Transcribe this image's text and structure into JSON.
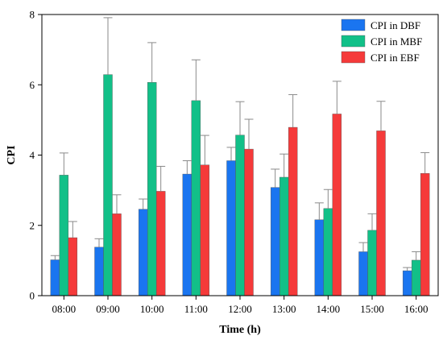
{
  "chart_data": {
    "type": "bar",
    "xlabel": "Time (h)",
    "ylabel": "CPI",
    "ylim": [
      0,
      8
    ],
    "yticks": [
      "0",
      "2",
      "4",
      "6",
      "8"
    ],
    "grid": false,
    "legend_position": "top-right",
    "categories": [
      "08:00",
      "09:00",
      "10:00",
      "11:00",
      "12:00",
      "13:00",
      "14:00",
      "15:00",
      "16:00"
    ],
    "series": [
      {
        "name": "CPI in DBF",
        "color": "#1a75f0",
        "values": [
          1.02,
          1.38,
          2.46,
          3.46,
          3.84,
          3.08,
          2.16,
          1.25,
          0.71
        ],
        "errors": [
          0.12,
          0.24,
          0.29,
          0.38,
          0.38,
          0.52,
          0.48,
          0.26,
          0.09
        ]
      },
      {
        "name": "CPI in MBF",
        "color": "#12c088",
        "values": [
          3.43,
          6.29,
          6.07,
          5.55,
          4.57,
          3.37,
          2.48,
          1.86,
          1.01
        ],
        "errors": [
          0.63,
          1.62,
          1.13,
          1.16,
          0.95,
          0.66,
          0.54,
          0.47,
          0.24
        ]
      },
      {
        "name": "CPI in EBF",
        "color": "#f53a3a",
        "values": [
          1.65,
          2.33,
          2.97,
          3.72,
          4.17,
          4.79,
          5.17,
          4.69,
          3.48
        ],
        "errors": [
          0.46,
          0.54,
          0.71,
          0.84,
          0.85,
          0.93,
          0.93,
          0.84,
          0.59
        ]
      }
    ]
  }
}
